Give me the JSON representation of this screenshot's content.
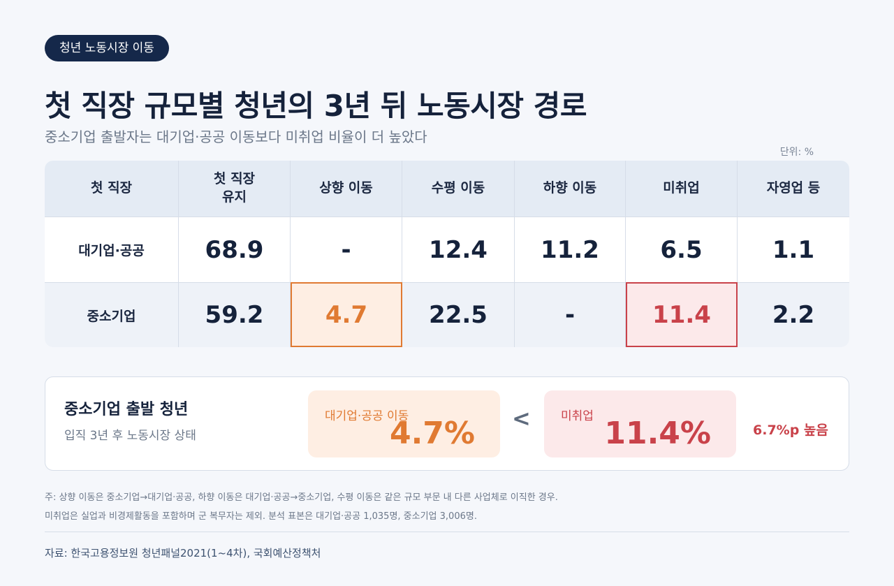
{
  "badge": "청년 노동시장 이동",
  "title": "첫 직장 규모별 청년의 3년 뒤 노동시장 경로",
  "subtitle": "중소기업 출발자는 대기업·공공 이동보다 미취업 비율이 더 높았다",
  "unit": "단위: %",
  "table": {
    "headers": [
      "첫 직장",
      "첫 직장\n유지",
      "상향 이동",
      "수평 이동",
      "하향 이동",
      "미취업",
      "자영업 등"
    ],
    "rows": [
      {
        "label": "대기업·공공",
        "values": [
          "68.9",
          "-",
          "12.4",
          "11.2",
          "6.5",
          "1.1"
        ]
      },
      {
        "label": "중소기업",
        "values": [
          "59.2",
          "4.7",
          "22.5",
          "-",
          "11.4",
          "2.2"
        ]
      }
    ]
  },
  "summary": {
    "title": "중소기업 출발 청년",
    "subtitle": "입직 3년 후 노동시장 상태",
    "left_label": "대기업·공공 이동",
    "left_value": "4.7%",
    "comparator": "<",
    "right_label": "미취업",
    "right_value": "11.4%",
    "difference": "6.7%p 높음"
  },
  "notes": [
    "주: 상향 이동은 중소기업→대기업·공공, 하향 이동은 대기업·공공→중소기업, 수평 이동은 같은 규모 부문 내 다른 사업체로 이직한 경우.",
    "미취업은 실업과 비경제활동을 포함하며 군 복무자는 제외. 분석 표본은 대기업·공공 1,035명, 중소기업 3,006명."
  ],
  "source": "자료: 한국고용정보원 청년패널2021(1~4차), 국회예산정책처",
  "colors": {
    "navy": "#15284a",
    "orange_highlight": "#e07a32",
    "red_highlight": "#c9424a"
  }
}
